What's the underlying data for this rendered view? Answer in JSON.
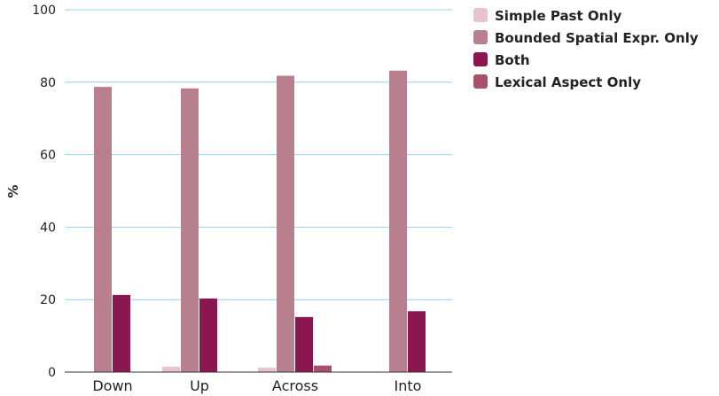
{
  "chart_data": {
    "type": "bar",
    "categories": [
      "Down",
      "Up",
      "Across",
      "Into"
    ],
    "series": [
      {
        "name": "Simple Past Only",
        "color": "#e8c3cd",
        "values": [
          0,
          1.5,
          1.2,
          0
        ]
      },
      {
        "name": "Bounded Spatial Expr. Only",
        "color": "#b8808e",
        "values": [
          78.7,
          78.3,
          81.8,
          83.2
        ]
      },
      {
        "name": "Both",
        "color": "#8b1650",
        "values": [
          21.3,
          20.3,
          15.2,
          16.8
        ]
      },
      {
        "name": "Lexical Aspect Only",
        "color": "#a85068",
        "values": [
          0,
          0,
          1.8,
          0
        ]
      }
    ],
    "ylabel": "%",
    "xlabel": "",
    "title": "",
    "ylim": [
      0,
      100
    ],
    "yticks": [
      0,
      20,
      40,
      60,
      80,
      100
    ],
    "grid": true,
    "grid_color": "#8fd3e6",
    "legend_position": "top-right"
  }
}
